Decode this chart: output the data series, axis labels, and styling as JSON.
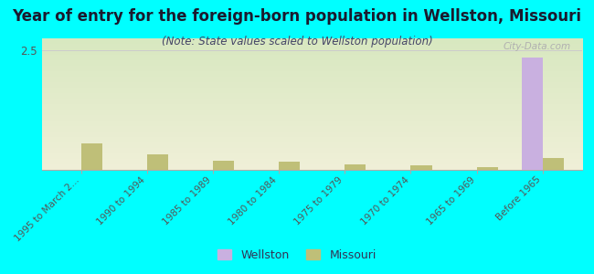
{
  "title": "Year of entry for the foreign-born population in Wellston, Missouri",
  "subtitle": "(Note: State values scaled to Wellston population)",
  "categories": [
    "1995 to March 2...",
    "1990 to 1994",
    "1985 to 1989",
    "1980 to 1984",
    "1975 to 1979",
    "1970 to 1974",
    "1965 to 1969",
    "Before 1965"
  ],
  "wellston_values": [
    0,
    0,
    0,
    0,
    0,
    0,
    0,
    2.35
  ],
  "missouri_values": [
    0.55,
    0.32,
    0.2,
    0.17,
    0.12,
    0.09,
    0.05,
    0.25
  ],
  "wellston_color": "#c9b0e0",
  "missouri_color": "#bfbf78",
  "bg_color": "#00ffff",
  "gradient_top": "#d8e8c0",
  "gradient_bottom": "#f0f0d8",
  "ylim": [
    0,
    2.75
  ],
  "yticks": [
    0,
    2.5
  ],
  "bar_width": 0.32,
  "watermark": "City-Data.com",
  "legend_wellston": "Wellston",
  "legend_missouri": "Missouri",
  "title_fontsize": 12,
  "subtitle_fontsize": 8.5
}
